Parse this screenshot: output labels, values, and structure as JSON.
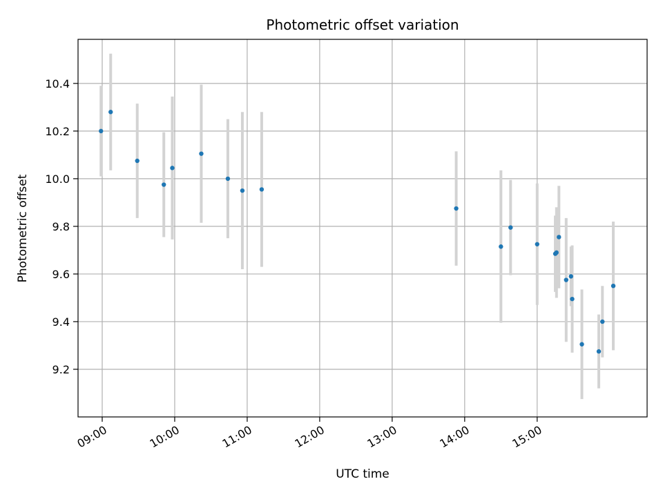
{
  "chart_data": {
    "type": "scatter",
    "title": "Photometric offset variation",
    "xlabel": "UTC time",
    "ylabel": "Photometric offset",
    "xlim": [
      "08:40",
      "16:31"
    ],
    "ylim": [
      9.0,
      10.585
    ],
    "grid": true,
    "x_ticks": [
      "09:00",
      "10:00",
      "11:00",
      "12:00",
      "13:00",
      "14:00",
      "15:00"
    ],
    "y_ticks": [
      9.2,
      9.4,
      9.6,
      9.8,
      10.0,
      10.2,
      10.4
    ],
    "marker_color": "#1f77b4",
    "errorbar_color": "#d3d3d3",
    "points": [
      {
        "time": "08:59",
        "y": 10.2,
        "err": 0.19
      },
      {
        "time": "09:07",
        "y": 10.28,
        "err": 0.245
      },
      {
        "time": "09:29",
        "y": 10.075,
        "err": 0.24
      },
      {
        "time": "09:51",
        "y": 9.975,
        "err": 0.22
      },
      {
        "time": "09:58",
        "y": 10.045,
        "err": 0.3
      },
      {
        "time": "10:22",
        "y": 10.105,
        "err": 0.29
      },
      {
        "time": "10:44",
        "y": 10.0,
        "err": 0.25
      },
      {
        "time": "10:56",
        "y": 9.95,
        "err": 0.33
      },
      {
        "time": "11:12",
        "y": 9.955,
        "err": 0.325
      },
      {
        "time": "13:53",
        "y": 9.875,
        "err": 0.24
      },
      {
        "time": "14:30",
        "y": 9.715,
        "err": 0.32
      },
      {
        "time": "14:38",
        "y": 9.795,
        "err": 0.2
      },
      {
        "time": "15:00",
        "y": 9.725,
        "err": 0.255
      },
      {
        "time": "15:15",
        "y": 9.685,
        "err": 0.16
      },
      {
        "time": "15:16",
        "y": 9.69,
        "err": 0.19
      },
      {
        "time": "15:18",
        "y": 9.755,
        "err": 0.215
      },
      {
        "time": "15:24",
        "y": 9.575,
        "err": 0.26
      },
      {
        "time": "15:28",
        "y": 9.59,
        "err": 0.125
      },
      {
        "time": "15:29",
        "y": 9.495,
        "err": 0.225
      },
      {
        "time": "15:37",
        "y": 9.305,
        "err": 0.23
      },
      {
        "time": "15:51",
        "y": 9.275,
        "err": 0.155
      },
      {
        "time": "15:54",
        "y": 9.4,
        "err": 0.15
      },
      {
        "time": "16:03",
        "y": 9.55,
        "err": 0.27
      }
    ]
  }
}
